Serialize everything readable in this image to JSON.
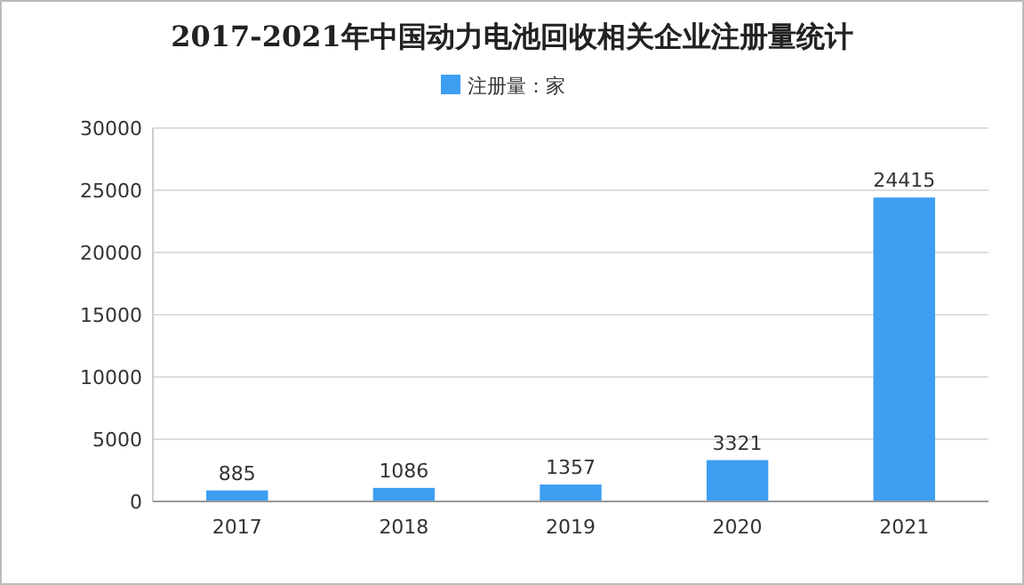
{
  "chart_data": {
    "type": "bar",
    "title": "2017-2021年中国动力电池回收相关企业注册量统计",
    "categories": [
      "2017",
      "2018",
      "2019",
      "2020",
      "2021"
    ],
    "series": [
      {
        "name": "注册量：家",
        "color": "#3d9ef2",
        "values": [
          885,
          1086,
          1357,
          3321,
          24415
        ]
      }
    ],
    "ylim": [
      0,
      30000
    ],
    "yticks": [
      0,
      5000,
      10000,
      15000,
      20000,
      25000,
      30000
    ],
    "grid": "y",
    "legend": "top",
    "data_labels": true
  }
}
